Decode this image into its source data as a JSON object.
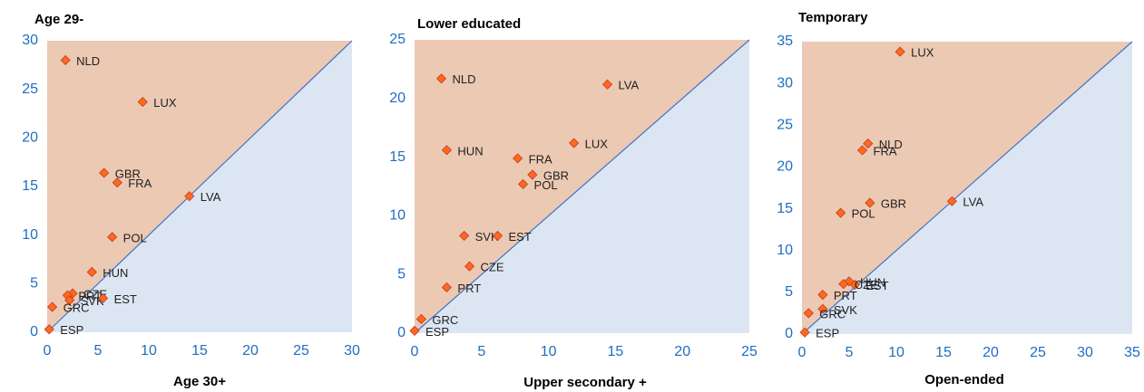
{
  "chart_data": [
    {
      "type": "scatter",
      "title": "Age 29-",
      "x_label": "Age 30+",
      "xlim": [
        0,
        30
      ],
      "ylim": [
        0,
        30
      ],
      "xticks": [
        0,
        5,
        10,
        15,
        20,
        25,
        30
      ],
      "yticks": [
        0,
        5,
        10,
        15,
        20,
        25,
        30
      ],
      "upper_color": "#ecc9b3",
      "lower_color": "#dce6f2",
      "line_color": "#4472c4",
      "marker_color": "#ff6a1a",
      "labels": [
        "NLD",
        "LUX",
        "GBR",
        "FRA",
        "LVA",
        "POL",
        "HUN",
        "CZE",
        "PRT",
        "SVK",
        "EST",
        "GRC",
        "ESP"
      ],
      "x": [
        1.8,
        9.4,
        5.6,
        6.9,
        14.0,
        6.4,
        4.4,
        2.5,
        2.0,
        2.2,
        5.5,
        0.5,
        0.2
      ],
      "values": [
        28.0,
        23.7,
        16.4,
        15.4,
        14.0,
        9.8,
        6.2,
        4.0,
        3.8,
        3.3,
        3.5,
        2.6,
        0.3
      ]
    },
    {
      "type": "scatter",
      "title": "Lower educated",
      "x_label": "Upper secondary +",
      "xlim": [
        0,
        25
      ],
      "ylim": [
        0,
        25
      ],
      "xticks": [
        0,
        5,
        10,
        15,
        20,
        25
      ],
      "yticks": [
        0,
        5,
        10,
        15,
        20,
        25
      ],
      "upper_color": "#ecc9b3",
      "lower_color": "#dce6f2",
      "line_color": "#4472c4",
      "marker_color": "#ff6a1a",
      "labels": [
        "NLD",
        "LVA",
        "LUX",
        "HUN",
        "FRA",
        "GBR",
        "POL",
        "SVK",
        "EST",
        "CZE",
        "PRT",
        "GRC",
        "ESP"
      ],
      "x": [
        2.0,
        14.4,
        11.9,
        2.4,
        7.7,
        8.8,
        8.1,
        3.7,
        6.2,
        4.1,
        2.4,
        0.5,
        0.0
      ],
      "values": [
        21.7,
        21.2,
        16.2,
        15.6,
        14.9,
        13.5,
        12.7,
        8.3,
        8.3,
        5.7,
        3.9,
        1.2,
        0.2
      ]
    },
    {
      "type": "scatter",
      "title": "Temporary",
      "x_label": "Open-ended",
      "xlim": [
        0,
        35
      ],
      "ylim": [
        0,
        35
      ],
      "xticks": [
        0,
        5,
        10,
        15,
        20,
        25,
        30,
        35
      ],
      "yticks": [
        0,
        5,
        10,
        15,
        20,
        25,
        30,
        35
      ],
      "upper_color": "#ecc9b3",
      "lower_color": "#dce6f2",
      "line_color": "#4472c4",
      "marker_color": "#ff6a1a",
      "labels": [
        "LUX",
        "NLD",
        "FRA",
        "GBR",
        "LVA",
        "POL",
        "HUN",
        "EST",
        "CZE",
        "PRT",
        "SVK",
        "GRC",
        "ESP"
      ],
      "x": [
        10.4,
        7.0,
        6.4,
        7.2,
        15.9,
        4.1,
        5.0,
        5.6,
        4.4,
        2.2,
        2.2,
        0.7,
        0.3
      ],
      "values": [
        33.8,
        22.8,
        22.0,
        15.7,
        15.9,
        14.5,
        6.3,
        5.9,
        6.0,
        4.7,
        3.0,
        2.5,
        0.2
      ]
    }
  ]
}
